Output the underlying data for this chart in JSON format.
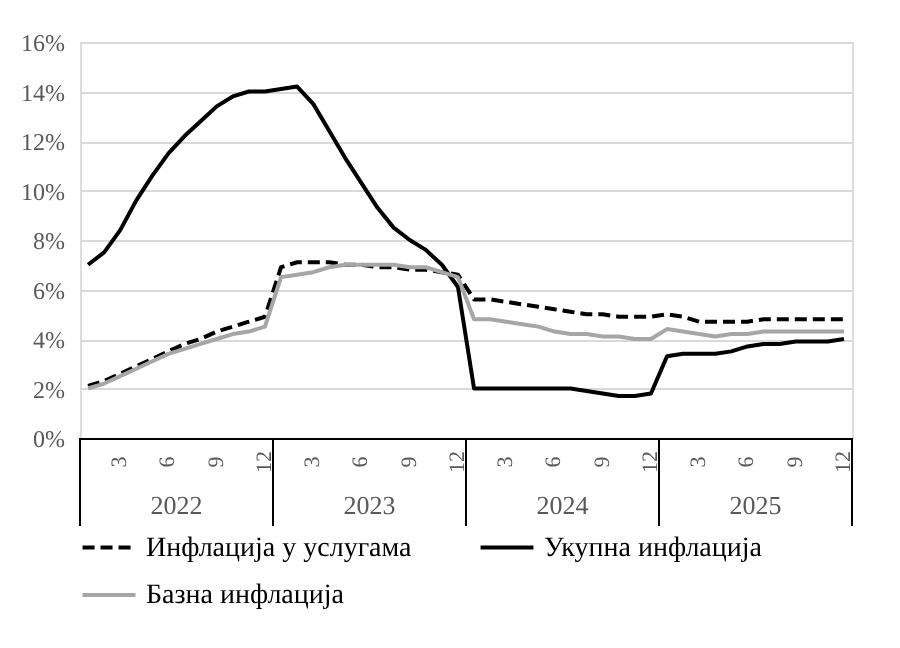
{
  "chart_data": {
    "type": "line",
    "categories": [
      null,
      null,
      "3",
      null,
      null,
      "6",
      null,
      null,
      "9",
      null,
      null,
      "12",
      null,
      null,
      "3",
      null,
      null,
      "6",
      null,
      null,
      "9",
      null,
      null,
      "12",
      null,
      null,
      "3",
      null,
      null,
      "6",
      null,
      null,
      "9",
      null,
      null,
      "12",
      null,
      null,
      "3",
      null,
      null,
      "6",
      null,
      null,
      "9",
      null,
      null,
      "12"
    ],
    "annotations": [
      "2022",
      "2023",
      "2024",
      "2025"
    ],
    "series": [
      {
        "name": "Инфлација у услугама",
        "color": "#000000",
        "line_style": "dashed",
        "values": [
          2.1,
          2.3,
          2.6,
          2.9,
          3.2,
          3.5,
          3.8,
          4.0,
          4.3,
          4.5,
          4.7,
          4.9,
          6.9,
          7.1,
          7.1,
          7.1,
          7.0,
          7.0,
          6.9,
          6.9,
          6.8,
          6.8,
          6.7,
          6.6,
          5.6,
          5.6,
          5.5,
          5.4,
          5.3,
          5.2,
          5.1,
          5.0,
          5.0,
          4.9,
          4.9,
          4.9,
          5.0,
          4.9,
          4.7,
          4.7,
          4.7,
          4.7,
          4.8,
          4.8,
          4.8,
          4.8,
          4.8,
          4.8
        ]
      },
      {
        "name": "Укупна инфлација",
        "color": "#000000",
        "line_style": "solid",
        "values": [
          7.0,
          7.5,
          8.4,
          9.6,
          10.6,
          11.5,
          12.2,
          12.8,
          13.4,
          13.8,
          14.0,
          14.0,
          14.1,
          14.2,
          13.5,
          12.4,
          11.3,
          10.3,
          9.3,
          8.5,
          8.0,
          7.6,
          7.0,
          6.1,
          2.0,
          2.0,
          2.0,
          2.0,
          2.0,
          2.0,
          2.0,
          1.9,
          1.8,
          1.7,
          1.7,
          1.8,
          3.3,
          3.4,
          3.4,
          3.4,
          3.5,
          3.7,
          3.8,
          3.8,
          3.9,
          3.9,
          3.9,
          4.0
        ]
      },
      {
        "name": "Базна инфлација",
        "color": "#a6a6a6",
        "line_style": "solid",
        "values": [
          2.0,
          2.2,
          2.5,
          2.8,
          3.1,
          3.4,
          3.6,
          3.8,
          4.0,
          4.2,
          4.3,
          4.5,
          6.5,
          6.6,
          6.7,
          6.9,
          7.0,
          7.0,
          7.0,
          7.0,
          6.9,
          6.9,
          6.7,
          6.5,
          4.8,
          4.8,
          4.7,
          4.6,
          4.5,
          4.3,
          4.2,
          4.2,
          4.1,
          4.1,
          4.0,
          4.0,
          4.4,
          4.3,
          4.2,
          4.1,
          4.2,
          4.2,
          4.3,
          4.3,
          4.3,
          4.3,
          4.3,
          4.3
        ]
      }
    ],
    "ylim": [
      0,
      16
    ],
    "yticks": [
      {
        "value": 0,
        "label": "0%"
      },
      {
        "value": 2,
        "label": "2%"
      },
      {
        "value": 4,
        "label": "4%"
      },
      {
        "value": 6,
        "label": "6%"
      },
      {
        "value": 8,
        "label": "8%"
      },
      {
        "value": 10,
        "label": "10%"
      },
      {
        "value": 12,
        "label": "12%"
      },
      {
        "value": 14,
        "label": "14%"
      },
      {
        "value": 16,
        "label": "16%"
      }
    ],
    "grid": "y",
    "legend": "bottom",
    "marker": "none"
  }
}
